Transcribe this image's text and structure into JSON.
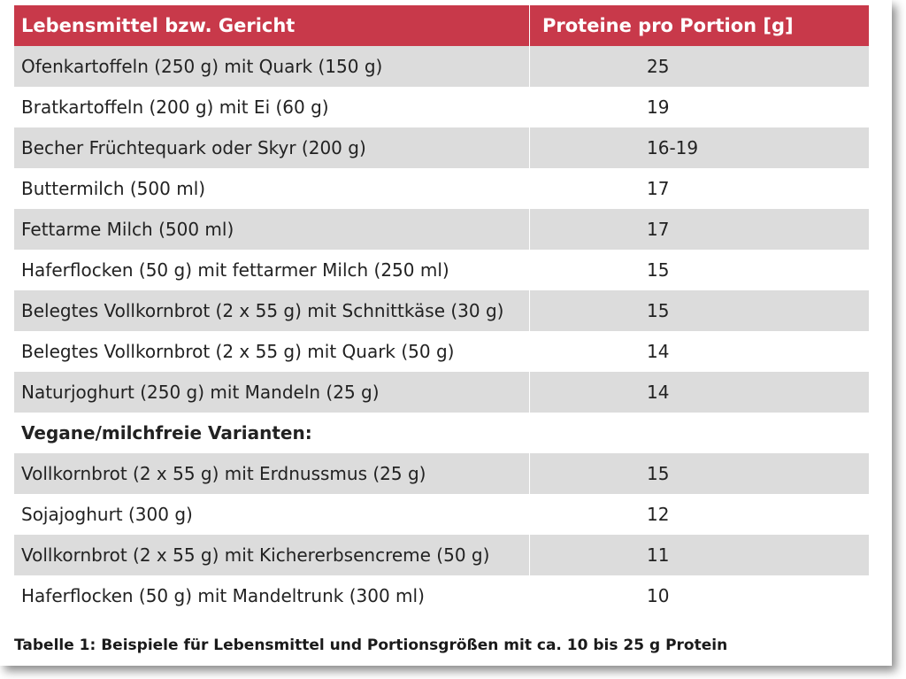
{
  "table": {
    "header": {
      "food": "Lebensmittel bzw. Gericht",
      "protein": "Proteine pro Portion [g]"
    },
    "rows": [
      {
        "food": "Ofenkartoffeln (250 g) mit Quark (150 g)",
        "protein": "25"
      },
      {
        "food": "Bratkartoffeln (200 g) mit Ei (60 g)",
        "protein": "19"
      },
      {
        "food": "Becher Früchtequark oder Skyr (200 g)",
        "protein": "16-19"
      },
      {
        "food": "Buttermilch (500 ml)",
        "protein": "17"
      },
      {
        "food": "Fettarme Milch (500 ml)",
        "protein": "17"
      },
      {
        "food": "Haferflocken (50 g) mit fettarmer Milch (250 ml)",
        "protein": "15"
      },
      {
        "food": "Belegtes Vollkornbrot (2 x 55 g) mit Schnittkäse (30 g)",
        "protein": "15"
      },
      {
        "food": "Belegtes Vollkornbrot (2 x 55 g) mit Quark (50 g)",
        "protein": "14"
      },
      {
        "food": "Naturjoghurt (250 g) mit Mandeln (25 g)",
        "protein": "14"
      },
      {
        "food": "Vegane/milchfreie Varianten:",
        "protein": ""
      },
      {
        "food": "Vollkornbrot (2 x 55 g) mit Erdnussmus (25 g)",
        "protein": "15"
      },
      {
        "food": "Sojajoghurt (300 g)",
        "protein": "12"
      },
      {
        "food": "Vollkornbrot (2 x 55 g) mit Kichererbsencreme (50 g)",
        "protein": "11"
      },
      {
        "food": "Haferflocken (50 g) mit Mandeltrunk (300 ml)",
        "protein": "10"
      }
    ]
  },
  "caption": "Tabelle 1: Beispiele für Lebensmittel und Portionsgrößen mit ca. 10 bis 25 g Protein",
  "colors": {
    "header_bg": "#c8394a",
    "row_shade": "#dcdcdc"
  }
}
